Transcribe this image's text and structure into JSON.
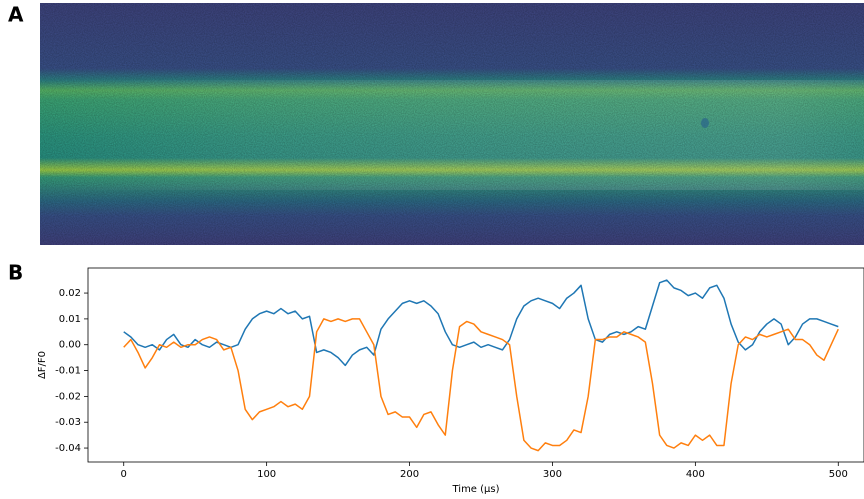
{
  "image_panel": {
    "label": "A"
  },
  "chart_data": {
    "type": "line",
    "panel_label": "B",
    "x_label": "Time (μs)",
    "y_label": "ΔF/F0",
    "x": [
      0,
      5,
      10,
      15,
      20,
      25,
      30,
      35,
      40,
      45,
      50,
      55,
      60,
      65,
      70,
      75,
      80,
      85,
      90,
      95,
      100,
      105,
      110,
      115,
      120,
      125,
      130,
      135,
      140,
      145,
      150,
      155,
      160,
      165,
      170,
      175,
      180,
      185,
      190,
      195,
      200,
      205,
      210,
      215,
      220,
      225,
      230,
      235,
      240,
      245,
      250,
      255,
      260,
      265,
      270,
      275,
      280,
      285,
      290,
      295,
      300,
      305,
      310,
      315,
      320,
      325,
      330,
      335,
      340,
      345,
      350,
      355,
      360,
      365,
      370,
      375,
      380,
      385,
      390,
      395,
      400,
      405,
      410,
      415,
      420,
      425,
      430,
      435,
      440,
      445,
      450,
      455,
      460,
      465,
      470,
      475,
      480,
      485,
      490,
      495,
      500
    ],
    "series": [
      {
        "color": "#1f77b4",
        "values": [
          0.005,
          0.003,
          0.0,
          -0.001,
          0.0,
          -0.002,
          0.002,
          0.004,
          0.0,
          -0.001,
          0.002,
          0.0,
          -0.001,
          0.001,
          0.0,
          -0.001,
          0.0,
          0.006,
          0.01,
          0.012,
          0.013,
          0.012,
          0.014,
          0.012,
          0.013,
          0.01,
          0.011,
          -0.003,
          -0.002,
          -0.003,
          -0.005,
          -0.008,
          -0.004,
          -0.002,
          -0.001,
          -0.004,
          0.006,
          0.01,
          0.013,
          0.016,
          0.017,
          0.016,
          0.017,
          0.015,
          0.012,
          0.005,
          0.0,
          -0.001,
          0.0,
          0.001,
          -0.001,
          0.0,
          -0.001,
          -0.002,
          0.002,
          0.01,
          0.015,
          0.017,
          0.018,
          0.017,
          0.016,
          0.014,
          0.018,
          0.02,
          0.023,
          0.01,
          0.002,
          0.001,
          0.004,
          0.005,
          0.004,
          0.005,
          0.007,
          0.006,
          0.015,
          0.024,
          0.025,
          0.022,
          0.021,
          0.019,
          0.02,
          0.018,
          0.022,
          0.023,
          0.018,
          0.008,
          0.001,
          -0.002,
          0.0,
          0.005,
          0.008,
          0.01,
          0.008,
          0.0,
          0.003,
          0.008,
          0.01,
          0.01,
          0.009,
          0.008,
          0.007
        ]
      },
      {
        "color": "#ff7f0e",
        "values": [
          -0.001,
          0.002,
          -0.003,
          -0.009,
          -0.005,
          0.0,
          -0.001,
          0.001,
          -0.001,
          0.0,
          0.0,
          0.002,
          0.003,
          0.002,
          -0.002,
          -0.001,
          -0.01,
          -0.025,
          -0.029,
          -0.026,
          -0.025,
          -0.024,
          -0.022,
          -0.024,
          -0.023,
          -0.025,
          -0.02,
          0.005,
          0.01,
          0.009,
          0.01,
          0.009,
          0.01,
          0.01,
          0.005,
          0.0,
          -0.02,
          -0.027,
          -0.026,
          -0.028,
          -0.028,
          -0.032,
          -0.027,
          -0.026,
          -0.031,
          -0.035,
          -0.01,
          0.007,
          0.009,
          0.008,
          0.005,
          0.004,
          0.003,
          0.002,
          0.0,
          -0.02,
          -0.037,
          -0.04,
          -0.041,
          -0.038,
          -0.039,
          -0.039,
          -0.037,
          -0.033,
          -0.034,
          -0.02,
          0.002,
          0.002,
          0.003,
          0.003,
          0.005,
          0.004,
          0.003,
          0.001,
          -0.015,
          -0.035,
          -0.039,
          -0.04,
          -0.038,
          -0.039,
          -0.035,
          -0.037,
          -0.035,
          -0.039,
          -0.039,
          -0.015,
          0.0,
          0.003,
          0.002,
          0.004,
          0.003,
          0.004,
          0.005,
          0.006,
          0.002,
          0.002,
          0.0,
          -0.004,
          -0.006,
          0.0,
          0.006
        ]
      }
    ],
    "xlim": [
      -25,
      518
    ],
    "ylim": [
      -0.0454,
      0.0297
    ],
    "xticks": [
      0,
      100,
      200,
      300,
      400,
      500
    ],
    "yticks": [
      0.02,
      0.01,
      {
        "value": 0,
        "label": "0.00"
      },
      -0.01,
      -0.02,
      -0.03,
      -0.04
    ],
    "grid": false
  }
}
